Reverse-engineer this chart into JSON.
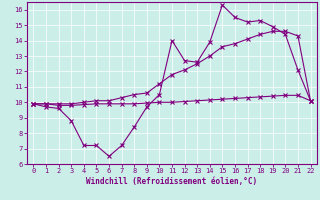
{
  "xlabel": "Windchill (Refroidissement éolien,°C)",
  "background_color": "#cceee8",
  "line_color": "#800080",
  "xlim": [
    -0.5,
    22.5
  ],
  "ylim": [
    6,
    16.5
  ],
  "xticks": [
    0,
    1,
    2,
    3,
    4,
    5,
    6,
    7,
    8,
    9,
    10,
    11,
    12,
    13,
    14,
    15,
    16,
    17,
    18,
    19,
    20,
    21,
    22
  ],
  "yticks": [
    6,
    7,
    8,
    9,
    10,
    11,
    12,
    13,
    14,
    15,
    16
  ],
  "line1_x": [
    0,
    1,
    2,
    3,
    4,
    5,
    6,
    7,
    8,
    9,
    10,
    11,
    12,
    13,
    14,
    15,
    16,
    17,
    18,
    19,
    20,
    21,
    22
  ],
  "line1_y": [
    9.9,
    9.7,
    9.6,
    8.8,
    7.2,
    7.2,
    6.5,
    7.2,
    8.4,
    9.7,
    10.5,
    14.0,
    12.7,
    12.6,
    13.9,
    16.3,
    15.5,
    15.2,
    15.3,
    14.9,
    14.4,
    12.1,
    10.1
  ],
  "line2_x": [
    0,
    1,
    2,
    3,
    4,
    5,
    6,
    7,
    8,
    9,
    10,
    11,
    12,
    13,
    14,
    15,
    16,
    17,
    18,
    19,
    20,
    21,
    22
  ],
  "line2_y": [
    9.9,
    9.9,
    9.9,
    9.9,
    10.0,
    10.1,
    10.1,
    10.3,
    10.5,
    10.6,
    11.2,
    11.8,
    12.1,
    12.5,
    13.0,
    13.6,
    13.8,
    14.1,
    14.4,
    14.6,
    14.6,
    14.3,
    10.1
  ],
  "line3_x": [
    0,
    1,
    2,
    3,
    4,
    5,
    6,
    7,
    8,
    9,
    10,
    11,
    12,
    13,
    14,
    15,
    16,
    17,
    18,
    19,
    20,
    21,
    22
  ],
  "line3_y": [
    9.9,
    9.9,
    9.8,
    9.8,
    9.85,
    9.9,
    9.9,
    9.9,
    9.9,
    9.95,
    10.0,
    10.0,
    10.05,
    10.1,
    10.15,
    10.2,
    10.25,
    10.3,
    10.35,
    10.4,
    10.45,
    10.45,
    10.1
  ]
}
